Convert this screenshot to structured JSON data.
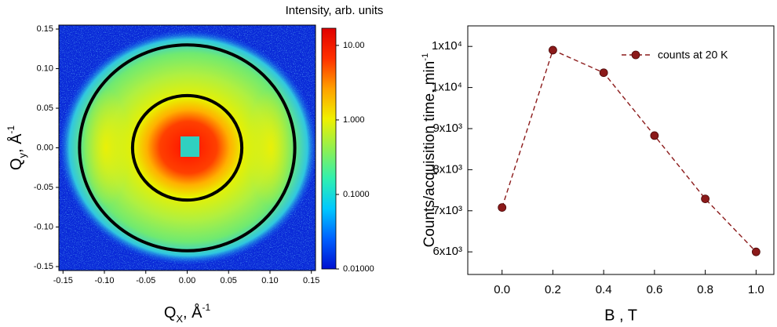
{
  "chart_data": [
    {
      "type": "heatmap",
      "title": "Intensity, arb. units",
      "x_label": {
        "main": "Q",
        "sub": "X",
        "suffix": ", Å",
        "sup": "-1"
      },
      "y_label": {
        "main": "Q",
        "sub": "y",
        "suffix": ", Å",
        "sup": "-1"
      },
      "xlim": [
        -0.155,
        0.155
      ],
      "ylim": [
        -0.155,
        0.155
      ],
      "xticks": [
        -0.15,
        {
          "value": -0.1,
          "label": "-0.10"
        },
        -0.05,
        {
          "value": 0,
          "label": "0.00"
        },
        0.05,
        {
          "value": 0.1,
          "label": "0.10"
        },
        0.15
      ],
      "yticks": [
        -0.15,
        {
          "value": -0.1,
          "label": "-0.10"
        },
        -0.05,
        {
          "value": 0,
          "label": "0.00"
        },
        0.05,
        {
          "value": 0.1,
          "label": "0.10"
        },
        0.15
      ],
      "colorbar": {
        "log": true,
        "lim": [
          0.01,
          17
        ],
        "ticks": [
          {
            "value": 0.01,
            "label": "0.01000"
          },
          {
            "value": 0.1,
            "label": "0.1000"
          },
          {
            "value": 1,
            "label": "1.000"
          },
          {
            "value": 10,
            "label": "10.00"
          }
        ],
        "colors": [
          "#0010d0",
          "#0060ff",
          "#00c8ff",
          "#30f0b0",
          "#90f050",
          "#f0f000",
          "#ffa000",
          "#ff3000",
          "#e00000"
        ]
      },
      "rings": {
        "radii": [
          0.13,
          0.066
        ],
        "color": "#000000"
      }
    },
    {
      "type": "line",
      "x_label": "B , T",
      "y_label": {
        "main": "Counts/acquisition time, min",
        "sup": "-1"
      },
      "x": [
        0,
        0.2,
        0.4,
        0.6,
        0.8,
        1
      ],
      "series": [
        {
          "name": "counts at 20 K",
          "color": "#8b1a1a",
          "values": [
            7080,
            10910,
            10360,
            8830,
            7290,
            6000
          ]
        }
      ],
      "xlim": [
        -0.135,
        1.07
      ],
      "ylim": [
        5450,
        11500
      ],
      "xticks": [
        {
          "value": 0,
          "label": "0.0"
        },
        0.2,
        0.4,
        0.6,
        0.8,
        {
          "value": 1,
          "label": "1.0"
        }
      ],
      "yticks": [
        {
          "value": 6000,
          "label": "6x10³"
        },
        {
          "value": 7000,
          "label": "7x10³"
        },
        {
          "value": 8000,
          "label": "8x10³"
        },
        {
          "value": 9000,
          "label": "9x10³"
        },
        {
          "value": 10000,
          "label": "1x10⁴"
        },
        {
          "value": 11000,
          "label": "1x10⁴"
        }
      ],
      "line_style": "dashed",
      "legend": "upper right"
    }
  ]
}
